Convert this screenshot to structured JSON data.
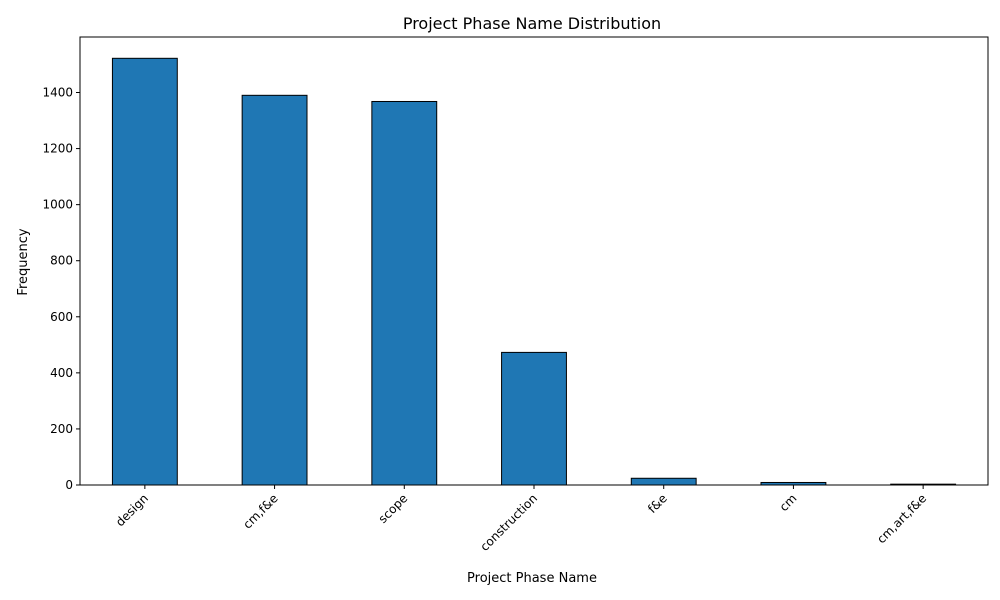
{
  "chart_data": {
    "type": "bar",
    "title": "Project Phase Name Distribution",
    "xlabel": "Project Phase Name",
    "ylabel": "Frequency",
    "categories": [
      "design",
      "cm,f&e",
      "scope",
      "construction",
      "f&e",
      "cm",
      "cm,art,f&e"
    ],
    "values": [
      1522,
      1390,
      1368,
      473,
      24,
      9,
      3
    ],
    "ylim": [
      0,
      1598
    ],
    "yticks": [
      0,
      200,
      400,
      600,
      800,
      1000,
      1200,
      1400
    ],
    "bar_color": "#1f77b4",
    "edge_color": "#000000",
    "grid": false,
    "legend": "none"
  }
}
